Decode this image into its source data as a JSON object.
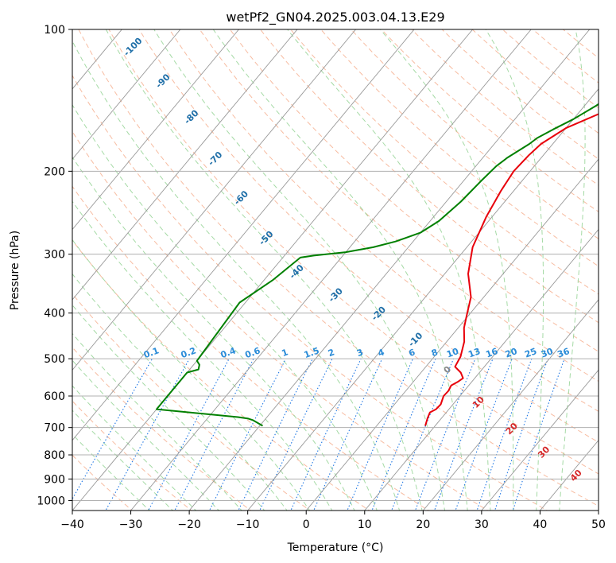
{
  "chart_data": {
    "type": "skew-t",
    "title": "wetPf2_GN04.2025.003.04.13.E29",
    "xlabel": "Temperature (°C)",
    "ylabel": "Pressure (hPa)",
    "xlim": [
      -40,
      50
    ],
    "ylim": [
      1050,
      100
    ],
    "y_scale": "log",
    "x_ticks": [
      -40,
      -30,
      -20,
      -10,
      0,
      10,
      20,
      30,
      40,
      50
    ],
    "x_tick_labels": [
      "−40",
      "−30",
      "−20",
      "−10",
      "0",
      "10",
      "20",
      "30",
      "40",
      "50"
    ],
    "y_ticks": [
      100,
      200,
      300,
      400,
      500,
      600,
      700,
      800,
      900,
      1000
    ],
    "y_tick_labels": [
      "100",
      "200",
      "300",
      "400",
      "500",
      "600",
      "700",
      "800",
      "900",
      "1000"
    ],
    "grid": true,
    "colors": {
      "temperature": "#e8000b",
      "dewpoint": "#008000",
      "isotherm": "#999999",
      "dry_adiabat": "#f4a582",
      "moist_adiabat": "#8fd18f",
      "mixing_ratio": "#1f77e4",
      "frost_point": "#d9a870",
      "dry_label": "#1f6fa8",
      "moist_label": "#d62728",
      "mix_label": "#2b8cd8"
    },
    "series": [
      {
        "key": "temperature",
        "points": [
          [
            8.3,
            694
          ],
          [
            7.6,
            668
          ],
          [
            7.2,
            650
          ],
          [
            7.8,
            640
          ],
          [
            7.9,
            625
          ],
          [
            7.2,
            600
          ],
          [
            7.3,
            585
          ],
          [
            7.0,
            570
          ],
          [
            7.6,
            560
          ],
          [
            8.0,
            550
          ],
          [
            6.8,
            535
          ],
          [
            5.0,
            520
          ],
          [
            4.8,
            510
          ],
          [
            4.5,
            495
          ],
          [
            3.0,
            460
          ],
          [
            1.0,
            430
          ],
          [
            -0.3,
            405
          ],
          [
            -2.2,
            370
          ],
          [
            -6.0,
            330
          ],
          [
            -9.0,
            290
          ],
          [
            -11.0,
            250
          ],
          [
            -12.2,
            220
          ],
          [
            -12.8,
            200
          ],
          [
            -12.5,
            185
          ],
          [
            -12.0,
            175
          ],
          [
            -10.0,
            162
          ],
          [
            -6.0,
            150
          ],
          [
            0.0,
            137
          ],
          [
            4.0,
            125
          ],
          [
            7.0,
            115
          ],
          [
            10.0,
            106
          ],
          [
            12.0,
            100
          ]
        ]
      },
      {
        "key": "dewpoint",
        "points": [
          [
            -19.5,
            694
          ],
          [
            -22.0,
            675
          ],
          [
            -23.0,
            670
          ],
          [
            -25.0,
            665
          ],
          [
            -40.0,
            640
          ],
          [
            -40.0,
            535
          ],
          [
            -38.5,
            527
          ],
          [
            -39.0,
            515
          ],
          [
            -40.0,
            505
          ],
          [
            -41.0,
            380
          ],
          [
            -38.5,
            340
          ],
          [
            -37.0,
            305
          ],
          [
            -35.0,
            302
          ],
          [
            -30.0,
            297
          ],
          [
            -26.0,
            290
          ],
          [
            -23.0,
            282
          ],
          [
            -20.0,
            270
          ],
          [
            -18.5,
            255
          ],
          [
            -17.5,
            232
          ],
          [
            -17.0,
            210
          ],
          [
            -16.5,
            195
          ],
          [
            -15.8,
            187
          ],
          [
            -14.0,
            175
          ],
          [
            -13.5,
            170
          ],
          [
            -12.0,
            163
          ],
          [
            -10.0,
            155
          ],
          [
            -8.0,
            145
          ],
          [
            -6.0,
            132
          ],
          [
            -4.0,
            120
          ],
          [
            -1.0,
            110
          ],
          [
            2.0,
            100
          ]
        ]
      }
    ],
    "dry_adiabat_labels": [
      "-100",
      "-90",
      "-80",
      "-70",
      "-60",
      "-50",
      "-40",
      "-30",
      "-20",
      "-10"
    ],
    "moist_adiabat_labels": [
      "0",
      "10",
      "20",
      "30",
      "40"
    ],
    "mixing_ratio_labels": [
      "0.1",
      "0.2",
      "0.4",
      "0.6",
      "1",
      "1.5",
      "2",
      "3",
      "4",
      "6",
      "8",
      "10",
      "13",
      "16",
      "20",
      "25",
      "30",
      "36"
    ]
  }
}
